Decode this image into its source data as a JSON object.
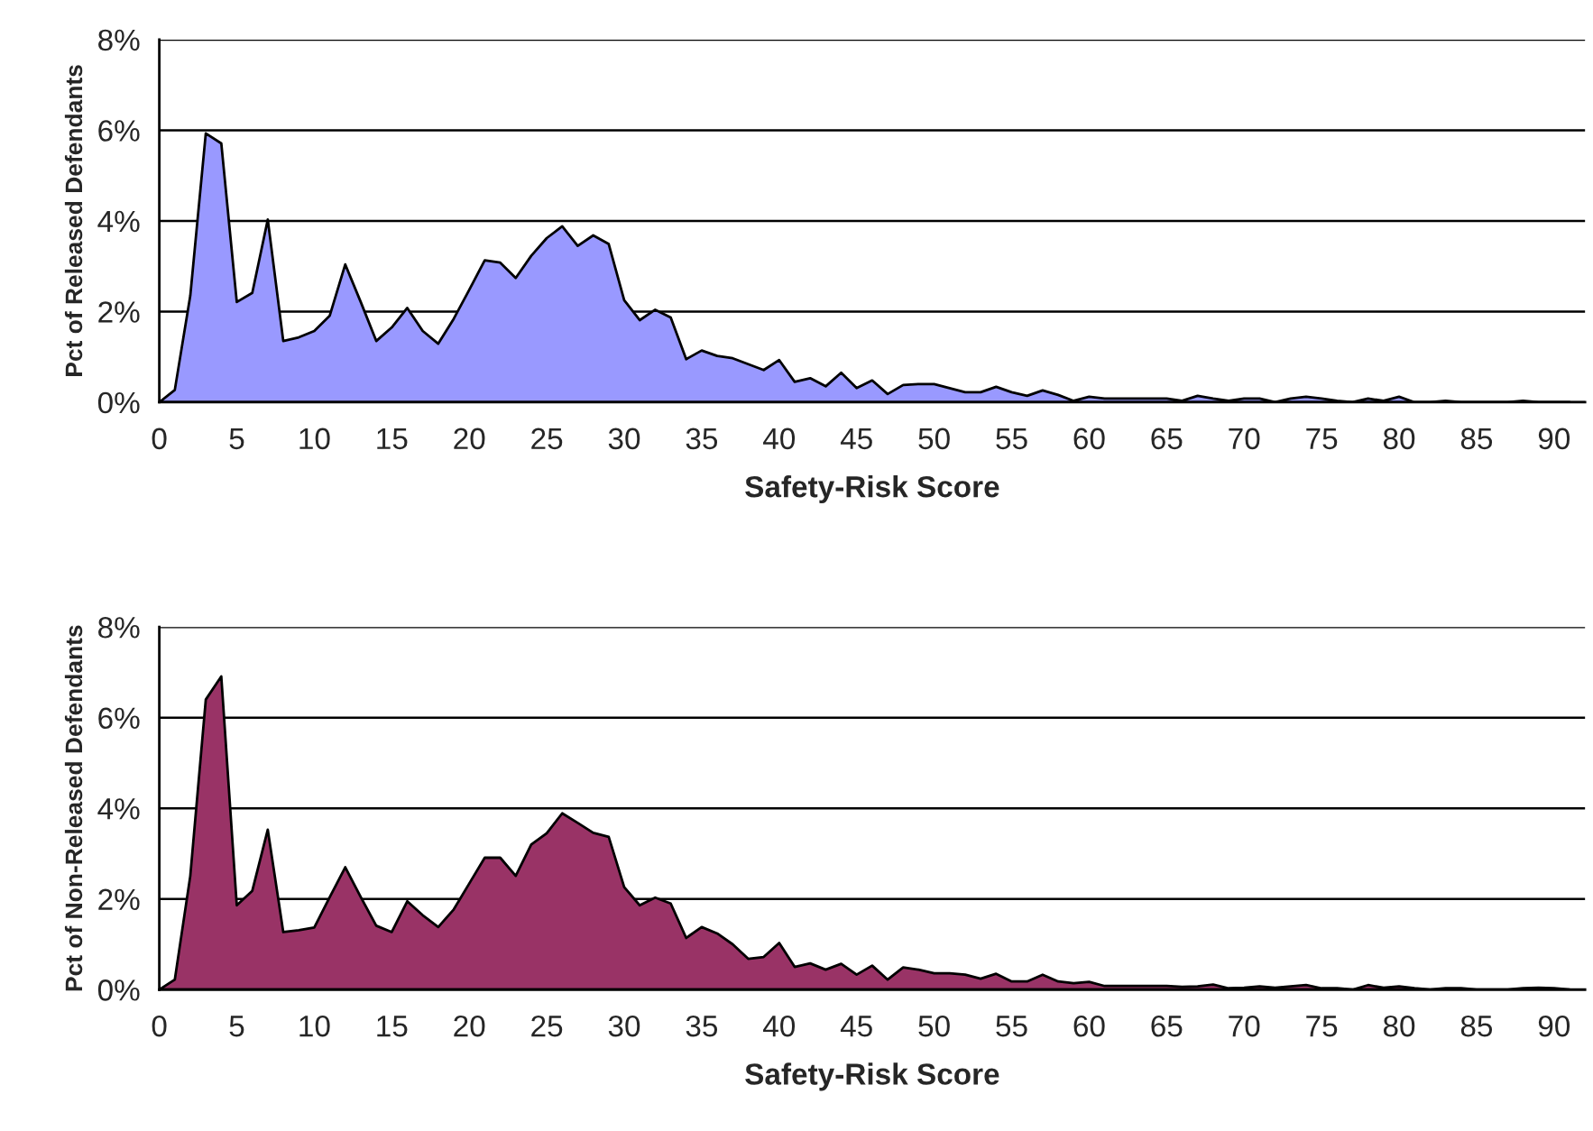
{
  "chart_data": [
    {
      "type": "area",
      "xlabel": "Safety-Risk Score",
      "ylabel": "Pct of Released Defendants",
      "x": [
        0,
        1,
        2,
        3,
        4,
        5,
        6,
        7,
        8,
        9,
        10,
        11,
        12,
        13,
        14,
        15,
        16,
        17,
        18,
        19,
        20,
        21,
        22,
        23,
        24,
        25,
        26,
        27,
        28,
        29,
        30,
        31,
        32,
        33,
        34,
        35,
        36,
        37,
        38,
        39,
        40,
        41,
        42,
        43,
        44,
        45,
        46,
        47,
        48,
        49,
        50,
        51,
        52,
        53,
        54,
        55,
        56,
        57,
        58,
        59,
        60,
        61,
        62,
        63,
        64,
        65,
        66,
        67,
        68,
        69,
        70,
        71,
        72,
        73,
        74,
        75,
        76,
        77,
        78,
        79,
        80,
        81,
        82,
        83,
        84,
        85,
        86,
        87,
        88,
        89,
        90,
        91
      ],
      "series": [
        {
          "color": "#9999ff",
          "values": [
            0,
            0.27,
            2.35,
            5.93,
            5.71,
            2.21,
            2.41,
            4.03,
            1.35,
            1.43,
            1.57,
            1.91,
            3.04,
            2.21,
            1.35,
            1.65,
            2.08,
            1.57,
            1.29,
            1.84,
            2.48,
            3.13,
            3.08,
            2.74,
            3.23,
            3.62,
            3.88,
            3.45,
            3.68,
            3.49,
            2.25,
            1.81,
            2.04,
            1.87,
            0.95,
            1.14,
            1.02,
            0.97,
            0.84,
            0.71,
            0.93,
            0.45,
            0.53,
            0.35,
            0.65,
            0.31,
            0.48,
            0.18,
            0.38,
            0.4,
            0.4,
            0.31,
            0.22,
            0.22,
            0.34,
            0.22,
            0.14,
            0.26,
            0.16,
            0.03,
            0.12,
            0.08,
            0.08,
            0.08,
            0.08,
            0.08,
            0.03,
            0.14,
            0.08,
            0.03,
            0.08,
            0.08,
            0,
            0.08,
            0.12,
            0.08,
            0.03,
            0,
            0.08,
            0.03,
            0.12,
            0,
            0,
            0.03,
            0,
            0,
            0,
            0,
            0.03,
            0,
            0,
            0
          ]
        }
      ],
      "xlim": [
        0,
        92
      ],
      "xticks": [
        0,
        5,
        10,
        15,
        20,
        25,
        30,
        35,
        40,
        45,
        50,
        55,
        60,
        65,
        70,
        75,
        80,
        85,
        90
      ],
      "ylim": [
        0,
        8
      ],
      "yticks": [
        {
          "value": 0,
          "label": "0%"
        },
        {
          "value": 2,
          "label": "2%"
        },
        {
          "value": 4,
          "label": "4%"
        },
        {
          "value": 6,
          "label": "6%"
        },
        {
          "value": 8,
          "label": "8%"
        }
      ],
      "grid": "y",
      "legend": false
    },
    {
      "type": "area",
      "xlabel": "Safety-Risk Score",
      "ylabel": "Pct of Non-Released Defendants",
      "x": [
        0,
        1,
        2,
        3,
        4,
        5,
        6,
        7,
        8,
        9,
        10,
        11,
        12,
        13,
        14,
        15,
        16,
        17,
        18,
        19,
        20,
        21,
        22,
        23,
        24,
        25,
        26,
        27,
        28,
        29,
        30,
        31,
        32,
        33,
        34,
        35,
        36,
        37,
        38,
        39,
        40,
        41,
        42,
        43,
        44,
        45,
        46,
        47,
        48,
        49,
        50,
        51,
        52,
        53,
        54,
        55,
        56,
        57,
        58,
        59,
        60,
        61,
        62,
        63,
        64,
        65,
        66,
        67,
        68,
        69,
        70,
        71,
        72,
        73,
        74,
        75,
        76,
        77,
        78,
        79,
        80,
        81,
        82,
        83,
        84,
        85,
        86,
        87,
        88,
        89,
        90,
        91
      ],
      "series": [
        {
          "color": "#993366",
          "values": [
            0,
            0.22,
            2.51,
            6.4,
            6.91,
            1.86,
            2.18,
            3.53,
            1.27,
            1.31,
            1.37,
            2.04,
            2.7,
            2.04,
            1.41,
            1.27,
            1.95,
            1.64,
            1.38,
            1.77,
            2.34,
            2.91,
            2.91,
            2.51,
            3.2,
            3.45,
            3.89,
            3.68,
            3.46,
            3.37,
            2.26,
            1.86,
            2.03,
            1.9,
            1.14,
            1.38,
            1.24,
            1.0,
            0.68,
            0.72,
            1.03,
            0.5,
            0.58,
            0.44,
            0.57,
            0.33,
            0.53,
            0.22,
            0.49,
            0.44,
            0.36,
            0.36,
            0.33,
            0.24,
            0.35,
            0.18,
            0.18,
            0.33,
            0.18,
            0.14,
            0.17,
            0.08,
            0.08,
            0.08,
            0.08,
            0.08,
            0.06,
            0.07,
            0.11,
            0.03,
            0.04,
            0.07,
            0.04,
            0.07,
            0.1,
            0.03,
            0.03,
            0,
            0.1,
            0.04,
            0.07,
            0.03,
            0,
            0.03,
            0.03,
            0,
            0,
            0,
            0.03,
            0.04,
            0.03,
            0
          ]
        }
      ],
      "xlim": [
        0,
        92
      ],
      "xticks": [
        0,
        5,
        10,
        15,
        20,
        25,
        30,
        35,
        40,
        45,
        50,
        55,
        60,
        65,
        70,
        75,
        80,
        85,
        90
      ],
      "ylim": [
        0,
        8
      ],
      "yticks": [
        {
          "value": 0,
          "label": "0%"
        },
        {
          "value": 2,
          "label": "2%"
        },
        {
          "value": 4,
          "label": "4%"
        },
        {
          "value": 6,
          "label": "6%"
        },
        {
          "value": 8,
          "label": "8%"
        }
      ],
      "grid": "y",
      "legend": false
    }
  ]
}
